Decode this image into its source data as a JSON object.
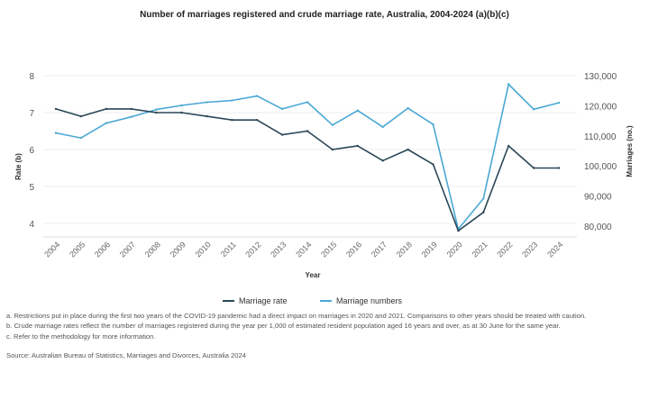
{
  "chart_data": {
    "type": "line",
    "title": "Number of marriages registered and crude marriage rate, Australia, 2004-2024 (a)(b)(c)",
    "xlabel": "Year",
    "ylabel_left": "Rate (b)",
    "ylabel_right": "Marriages (no.)",
    "categories": [
      "2004",
      "2005",
      "2006",
      "2007",
      "2008",
      "2009",
      "2010",
      "2011",
      "2012",
      "2013",
      "2014",
      "2015",
      "2016",
      "2017",
      "2018",
      "2019",
      "2020",
      "2021",
      "2022",
      "2023",
      "2024"
    ],
    "yticks_left": [
      4,
      5,
      6,
      7,
      8
    ],
    "yticks_right": [
      80000,
      90000,
      100000,
      110000,
      120000,
      130000
    ],
    "yticks_right_labels": [
      "80,000",
      "90,000",
      "100,000",
      "110,000",
      "120,000",
      "130,000"
    ],
    "ylim_left": [
      4,
      8
    ],
    "ylim_right": [
      80000,
      130000
    ],
    "grid": true,
    "legend_position": "bottom",
    "series": [
      {
        "name": "Marriage rate",
        "axis": "left",
        "color": "#2b4756",
        "values": [
          7.1,
          6.9,
          7.1,
          7.1,
          7.0,
          7.0,
          6.9,
          6.8,
          6.8,
          6.4,
          6.5,
          6.0,
          6.1,
          5.7,
          6.0,
          5.6,
          3.8,
          4.3,
          6.1,
          5.5,
          5.5
        ]
      },
      {
        "name": "Marriage numbers",
        "axis": "right",
        "color": "#4aa8d4",
        "values": [
          110958,
          109323,
          114222,
          116322,
          118756,
          120118,
          121176,
          121752,
          123244,
          118962,
          121197,
          113595,
          118401,
          112954,
          119188,
          113815,
          78989,
          89164,
          127161,
          118831,
          121000
        ]
      }
    ]
  },
  "notes": {
    "a": "a. Restrictions put in place during the first two years of the COVID-19 pandemic had a direct impact on marriages in 2020 and 2021. Comparisons to other years should be treated with caution.",
    "b": "b. Crude marriage rates reflect the number of marriages registered during the year per 1,000 of estimated resident population aged 16 years and over, as at 30 June for the same year.",
    "c": "c. Refer to the methodology for more information.",
    "source": "Source: Australian Bureau of Statistics, Marriages and Divorces, Australia 2024"
  }
}
